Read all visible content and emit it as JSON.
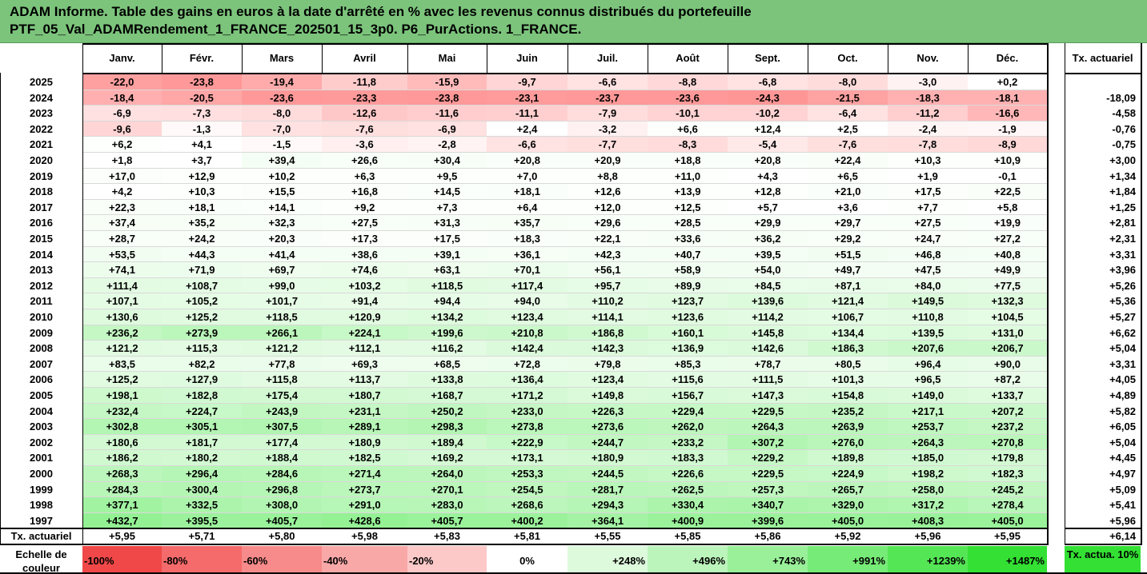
{
  "title_line1": "ADAM Informe. Table des gains en euros à la date d'arrêté en % avec les revenus connus distribués du portefeuille",
  "title_line2": "PTF_05_Val_ADAMRendement_1_FRANCE_202501_15_3p0. P6_PurActions. 1_FRANCE.",
  "months": [
    "Janv.",
    "Févr.",
    "Mars",
    "Avril",
    "Mai",
    "Juin",
    "Juil.",
    "Août",
    "Sept.",
    "Oct.",
    "Nov.",
    "Déc."
  ],
  "tx_header": "Tx. actuariel",
  "rows": [
    {
      "year": "2025",
      "v": [
        "-22,0",
        "-23,8",
        "-19,4",
        "-11,8",
        "-15,9",
        "-9,7",
        "-6,6",
        "-8,8",
        "-6,8",
        "-8,0",
        "-3,0",
        "+0,2"
      ],
      "tx": ""
    },
    {
      "year": "2024",
      "v": [
        "-18,4",
        "-20,5",
        "-23,6",
        "-23,3",
        "-23,8",
        "-23,1",
        "-23,7",
        "-23,6",
        "-24,3",
        "-21,5",
        "-18,3",
        "-18,1"
      ],
      "tx": "-18,09"
    },
    {
      "year": "2023",
      "v": [
        "-6,9",
        "-7,3",
        "-8,0",
        "-12,6",
        "-11,6",
        "-11,1",
        "-7,9",
        "-10,1",
        "-10,2",
        "-6,4",
        "-11,2",
        "-16,6"
      ],
      "tx": "-4,58"
    },
    {
      "year": "2022",
      "v": [
        "-9,6",
        "-1,3",
        "-7,0",
        "-7,6",
        "-6,9",
        "+2,4",
        "-3,2",
        "+6,6",
        "+12,4",
        "+2,5",
        "-2,4",
        "-1,9"
      ],
      "tx": "-0,76"
    },
    {
      "year": "2021",
      "v": [
        "+6,2",
        "+4,1",
        "-1,5",
        "-3,6",
        "-2,8",
        "-6,6",
        "-7,7",
        "-8,3",
        "-5,4",
        "-7,6",
        "-7,8",
        "-8,9"
      ],
      "tx": "-0,75"
    },
    {
      "year": "2020",
      "v": [
        "+1,8",
        "+3,7",
        "+39,4",
        "+26,6",
        "+30,4",
        "+20,8",
        "+20,9",
        "+18,8",
        "+20,8",
        "+22,4",
        "+10,3",
        "+10,9"
      ],
      "tx": "+3,00"
    },
    {
      "year": "2019",
      "v": [
        "+17,0",
        "+12,9",
        "+10,2",
        "+6,3",
        "+9,5",
        "+7,0",
        "+8,8",
        "+11,0",
        "+4,3",
        "+6,5",
        "+1,9",
        "-0,1"
      ],
      "tx": "+1,34"
    },
    {
      "year": "2018",
      "v": [
        "+4,2",
        "+10,3",
        "+15,5",
        "+16,8",
        "+14,5",
        "+18,1",
        "+12,6",
        "+13,9",
        "+12,8",
        "+21,0",
        "+17,5",
        "+22,5"
      ],
      "tx": "+1,84"
    },
    {
      "year": "2017",
      "v": [
        "+22,3",
        "+18,1",
        "+14,1",
        "+9,2",
        "+7,3",
        "+6,4",
        "+12,0",
        "+12,5",
        "+5,7",
        "+3,6",
        "+7,7",
        "+5,8"
      ],
      "tx": "+1,25"
    },
    {
      "year": "2016",
      "v": [
        "+37,4",
        "+35,2",
        "+32,3",
        "+27,5",
        "+31,3",
        "+35,7",
        "+29,6",
        "+28,5",
        "+29,9",
        "+29,7",
        "+27,5",
        "+19,9"
      ],
      "tx": "+2,81"
    },
    {
      "year": "2015",
      "v": [
        "+28,7",
        "+24,2",
        "+20,3",
        "+17,3",
        "+17,5",
        "+18,3",
        "+22,1",
        "+33,6",
        "+36,2",
        "+29,2",
        "+24,7",
        "+27,2"
      ],
      "tx": "+2,31"
    },
    {
      "year": "2014",
      "v": [
        "+53,5",
        "+44,3",
        "+41,4",
        "+38,6",
        "+39,1",
        "+36,1",
        "+42,3",
        "+40,7",
        "+39,5",
        "+51,5",
        "+46,8",
        "+40,8"
      ],
      "tx": "+3,31"
    },
    {
      "year": "2013",
      "v": [
        "+74,1",
        "+71,9",
        "+69,7",
        "+74,6",
        "+63,1",
        "+70,1",
        "+56,1",
        "+58,9",
        "+54,0",
        "+49,7",
        "+47,5",
        "+49,9"
      ],
      "tx": "+3,96"
    },
    {
      "year": "2012",
      "v": [
        "+111,4",
        "+108,7",
        "+99,0",
        "+103,2",
        "+118,5",
        "+117,4",
        "+95,7",
        "+89,9",
        "+84,5",
        "+87,1",
        "+84,0",
        "+77,5"
      ],
      "tx": "+5,26"
    },
    {
      "year": "2011",
      "v": [
        "+107,1",
        "+105,2",
        "+101,7",
        "+91,4",
        "+94,4",
        "+94,0",
        "+110,2",
        "+123,7",
        "+139,6",
        "+121,4",
        "+149,5",
        "+132,3"
      ],
      "tx": "+5,36"
    },
    {
      "year": "2010",
      "v": [
        "+130,6",
        "+125,2",
        "+118,5",
        "+120,9",
        "+134,2",
        "+123,4",
        "+114,1",
        "+123,6",
        "+114,2",
        "+106,7",
        "+110,8",
        "+104,5"
      ],
      "tx": "+5,27"
    },
    {
      "year": "2009",
      "v": [
        "+236,2",
        "+273,9",
        "+266,1",
        "+224,1",
        "+199,6",
        "+210,8",
        "+186,8",
        "+160,1",
        "+145,8",
        "+134,4",
        "+139,5",
        "+131,0"
      ],
      "tx": "+6,62"
    },
    {
      "year": "2008",
      "v": [
        "+121,2",
        "+115,3",
        "+121,2",
        "+112,1",
        "+116,2",
        "+142,4",
        "+142,3",
        "+136,9",
        "+142,6",
        "+186,3",
        "+207,6",
        "+206,7"
      ],
      "tx": "+5,04"
    },
    {
      "year": "2007",
      "v": [
        "+83,5",
        "+82,2",
        "+77,8",
        "+69,3",
        "+68,5",
        "+72,8",
        "+79,8",
        "+85,3",
        "+78,7",
        "+80,5",
        "+96,4",
        "+90,0"
      ],
      "tx": "+3,31"
    },
    {
      "year": "2006",
      "v": [
        "+125,2",
        "+127,9",
        "+115,8",
        "+113,7",
        "+133,8",
        "+136,4",
        "+123,4",
        "+115,6",
        "+111,5",
        "+101,3",
        "+96,5",
        "+87,2"
      ],
      "tx": "+4,05"
    },
    {
      "year": "2005",
      "v": [
        "+198,1",
        "+182,8",
        "+175,4",
        "+180,7",
        "+168,7",
        "+171,2",
        "+149,8",
        "+156,7",
        "+147,3",
        "+154,8",
        "+149,0",
        "+133,7"
      ],
      "tx": "+4,89"
    },
    {
      "year": "2004",
      "v": [
        "+232,4",
        "+224,7",
        "+243,9",
        "+231,1",
        "+250,2",
        "+233,0",
        "+226,3",
        "+229,4",
        "+229,5",
        "+235,2",
        "+217,1",
        "+207,2"
      ],
      "tx": "+5,82"
    },
    {
      "year": "2003",
      "v": [
        "+302,8",
        "+305,1",
        "+307,5",
        "+289,1",
        "+298,3",
        "+273,8",
        "+273,6",
        "+262,0",
        "+264,3",
        "+263,9",
        "+253,7",
        "+237,2"
      ],
      "tx": "+6,05"
    },
    {
      "year": "2002",
      "v": [
        "+180,6",
        "+181,7",
        "+177,4",
        "+180,9",
        "+189,4",
        "+222,9",
        "+244,7",
        "+233,2",
        "+307,2",
        "+276,0",
        "+264,3",
        "+270,8"
      ],
      "tx": "+5,04"
    },
    {
      "year": "2001",
      "v": [
        "+186,2",
        "+180,2",
        "+188,4",
        "+182,5",
        "+169,2",
        "+173,1",
        "+180,9",
        "+183,3",
        "+229,2",
        "+189,8",
        "+185,0",
        "+179,8"
      ],
      "tx": "+4,45"
    },
    {
      "year": "2000",
      "v": [
        "+268,3",
        "+296,4",
        "+284,6",
        "+271,4",
        "+264,0",
        "+253,3",
        "+244,5",
        "+226,6",
        "+229,5",
        "+224,9",
        "+198,2",
        "+182,3"
      ],
      "tx": "+4,97"
    },
    {
      "year": "1999",
      "v": [
        "+284,3",
        "+300,4",
        "+296,8",
        "+273,7",
        "+270,1",
        "+254,5",
        "+281,7",
        "+262,5",
        "+257,3",
        "+265,7",
        "+258,0",
        "+245,2"
      ],
      "tx": "+5,09"
    },
    {
      "year": "1998",
      "v": [
        "+377,1",
        "+332,5",
        "+308,0",
        "+291,0",
        "+283,0",
        "+268,6",
        "+294,3",
        "+330,4",
        "+340,7",
        "+329,0",
        "+317,2",
        "+278,4"
      ],
      "tx": "+5,41"
    },
    {
      "year": "1997",
      "v": [
        "+432,7",
        "+395,5",
        "+405,7",
        "+428,6",
        "+405,7",
        "+400,2",
        "+364,1",
        "+400,9",
        "+399,6",
        "+405,0",
        "+408,3",
        "+405,0"
      ],
      "tx": "+5,96"
    }
  ],
  "footer_label": "Tx. actuariel",
  "footer_values": [
    "+5,95",
    "+5,71",
    "+5,80",
    "+5,98",
    "+5,83",
    "+5,81",
    "+5,55",
    "+5,85",
    "+5,86",
    "+5,92",
    "+5,96",
    "+5,95"
  ],
  "footer_tx": "+6,14",
  "scale_label": "Echelle de couleur",
  "scale_values": [
    "-100%",
    "-80%",
    "-60%",
    "-40%",
    "-20%",
    "0%",
    "+248%",
    "+496%",
    "+743%",
    "+991%",
    "+1239%",
    "+1487%"
  ],
  "scale_colors": [
    "#f04848",
    "#f56a6a",
    "#f78a8a",
    "#f9a8a8",
    "#fcc8c8",
    "#ffffff",
    "#ddfadd",
    "#bbf5bb",
    "#99f099",
    "#77eb77",
    "#55e655",
    "#33e033"
  ],
  "scale_tx_label": "Tx. actua. 10%",
  "scale_tx_color": "#33e033"
}
